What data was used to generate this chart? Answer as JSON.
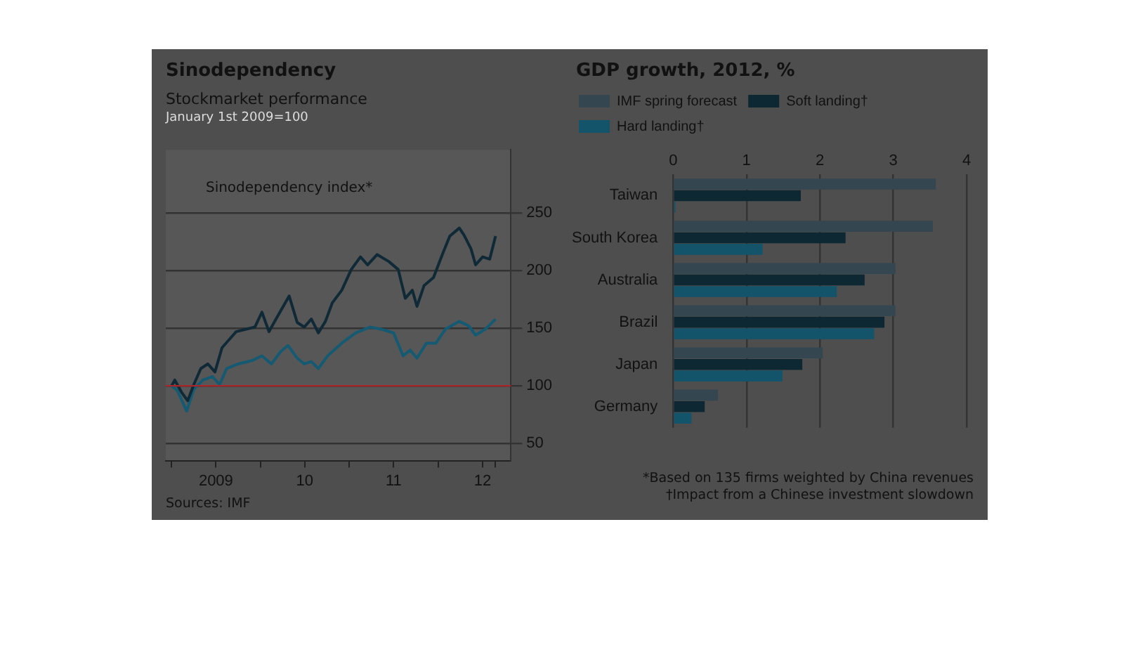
{
  "chart_data": [
    {
      "type": "line",
      "title": "Sinodependency",
      "subtitle": "Stockmarket performance",
      "annotations": [
        "January 1st 2009=100",
        "Sources: IMF"
      ],
      "xlim": [
        "2008-12-08",
        "2012-10-26"
      ],
      "xticks": [
        {
          "value": "2009-01-01",
          "label": null
        },
        {
          "value": "2009-07-02",
          "label": "2009"
        },
        {
          "value": "2010-01-01",
          "label": null
        },
        {
          "value": "2010-07-02",
          "label": "10"
        },
        {
          "value": "2011-01-01",
          "label": null
        },
        {
          "value": "2011-07-02",
          "label": "11"
        },
        {
          "value": "2012-01-01",
          "label": null
        },
        {
          "value": "2012-07-02",
          "label": "12"
        },
        {
          "value": "2012-08-24",
          "label": null
        }
      ],
      "ylim": [
        35,
        305
      ],
      "yticks": [
        50,
        100,
        150,
        200,
        250
      ],
      "grid": "y",
      "marker": "none",
      "line_style": "solid",
      "ref_lines": [
        {
          "axis": "y",
          "value": 100,
          "color": "#a8262a"
        }
      ],
      "series": [
        {
          "name": "Sinodependency index*",
          "color": "#0f2a36",
          "x": [
            "2009-01-01",
            "2009-01-14",
            "2009-02-12",
            "2009-03-08",
            "2009-04-02",
            "2009-05-01",
            "2009-05-30",
            "2009-06-28",
            "2009-07-27",
            "2009-08-25",
            "2009-09-23",
            "2009-10-31",
            "2009-12-09",
            "2010-01-07",
            "2010-02-05",
            "2010-03-06",
            "2010-04-29",
            "2010-06-01",
            "2010-06-30",
            "2010-07-29",
            "2010-08-27",
            "2010-09-25",
            "2010-10-23",
            "2010-12-01",
            "2011-01-09",
            "2011-02-16",
            "2011-03-17",
            "2011-04-25",
            "2011-06-12",
            "2011-07-21",
            "2011-08-19",
            "2011-09-17",
            "2011-10-06",
            "2011-11-04",
            "2011-12-13",
            "2012-01-20",
            "2012-02-18",
            "2012-03-28",
            "2012-04-16",
            "2012-05-15",
            "2012-06-03",
            "2012-07-02",
            "2012-07-31",
            "2012-08-24"
          ],
          "values": [
            100,
            105,
            94,
            87,
            101,
            115,
            119,
            112,
            133,
            140,
            147,
            149,
            151,
            164,
            147,
            158,
            178,
            155,
            151,
            158,
            146,
            156,
            172,
            183,
            201,
            212,
            205,
            214,
            208,
            201,
            176,
            183,
            169,
            187,
            194,
            215,
            230,
            237,
            231,
            219,
            205,
            212,
            210,
            230
          ]
        },
        {
          "color": "#145a72",
          "x": [
            "2009-01-01",
            "2009-01-24",
            "2009-03-04",
            "2009-04-02",
            "2009-05-10",
            "2009-06-18",
            "2009-07-17",
            "2009-08-15",
            "2009-10-02",
            "2009-11-29",
            "2010-01-07",
            "2010-02-15",
            "2010-03-26",
            "2010-04-24",
            "2010-06-01",
            "2010-06-30",
            "2010-07-29",
            "2010-08-27",
            "2010-10-04",
            "2010-12-01",
            "2011-01-28",
            "2011-03-27",
            "2011-05-15",
            "2011-07-02",
            "2011-08-10",
            "2011-09-08",
            "2011-10-06",
            "2011-11-14",
            "2011-12-23",
            "2012-01-30",
            "2012-03-28",
            "2012-05-06",
            "2012-06-03",
            "2012-07-12",
            "2012-08-24"
          ],
          "values": [
            100,
            96,
            78,
            97,
            105,
            108,
            101,
            115,
            119,
            122,
            126,
            119,
            130,
            135,
            124,
            119,
            121,
            115,
            126,
            137,
            146,
            151,
            149,
            146,
            126,
            131,
            124,
            137,
            137,
            149,
            156,
            152,
            144,
            149,
            158
          ]
        }
      ]
    },
    {
      "type": "bar",
      "orientation": "horizontal",
      "title": "GDP growth, 2012, %",
      "annotations": [
        "*Based on 135 firms weighted by China revenues",
        "†Impact from a Chinese investment slowdown"
      ],
      "categories": [
        "Taiwan",
        "South Korea",
        "Australia",
        "Brazil",
        "Japan",
        "Germany"
      ],
      "xlim": [
        0,
        4
      ],
      "xticks": [
        0,
        1,
        2,
        3,
        4
      ],
      "grid": "x",
      "legend": "top",
      "series": [
        {
          "name": "IMF spring forecast",
          "color": "#34464f",
          "values": [
            3.58,
            3.54,
            3.03,
            3.03,
            2.04,
            0.61
          ]
        },
        {
          "name": "Soft landing†",
          "color": "#0e2833",
          "values": [
            1.74,
            2.35,
            2.61,
            2.88,
            1.76,
            0.43
          ]
        },
        {
          "name": "Hard landing†",
          "color": "#13546b",
          "values": [
            0.03,
            1.22,
            2.23,
            2.74,
            1.49,
            0.25
          ]
        }
      ]
    }
  ]
}
